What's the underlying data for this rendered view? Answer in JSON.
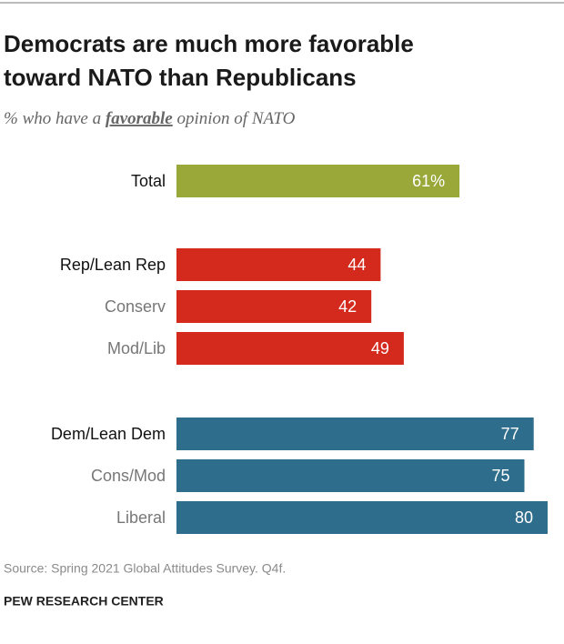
{
  "chart_data": {
    "type": "bar",
    "title": [
      "Democrats are much more favorable",
      "toward NATO than Republicans"
    ],
    "subtitle": [
      "% who have a ",
      "favorable",
      " opinion of NATO"
    ],
    "categories": [
      "Total",
      "Rep/Lean Rep",
      "Conserv",
      "Mod/Lib",
      "Dem/Lean Dem",
      "Cons/Mod",
      "Liberal"
    ],
    "values": [
      61,
      44,
      42,
      49,
      77,
      75,
      80
    ],
    "value_labels": [
      "61%",
      "44",
      "42",
      "49",
      "77",
      "75",
      "80"
    ],
    "colors": [
      "#9aa83a",
      "#d4291d",
      "#d4291d",
      "#d4291d",
      "#2f6d8c",
      "#2f6d8c",
      "#2f6d8c"
    ],
    "source": "Source: Spring 2021 Global Attitudes Survey. Q4f.",
    "credit": "PEW RESEARCH CENTER"
  }
}
